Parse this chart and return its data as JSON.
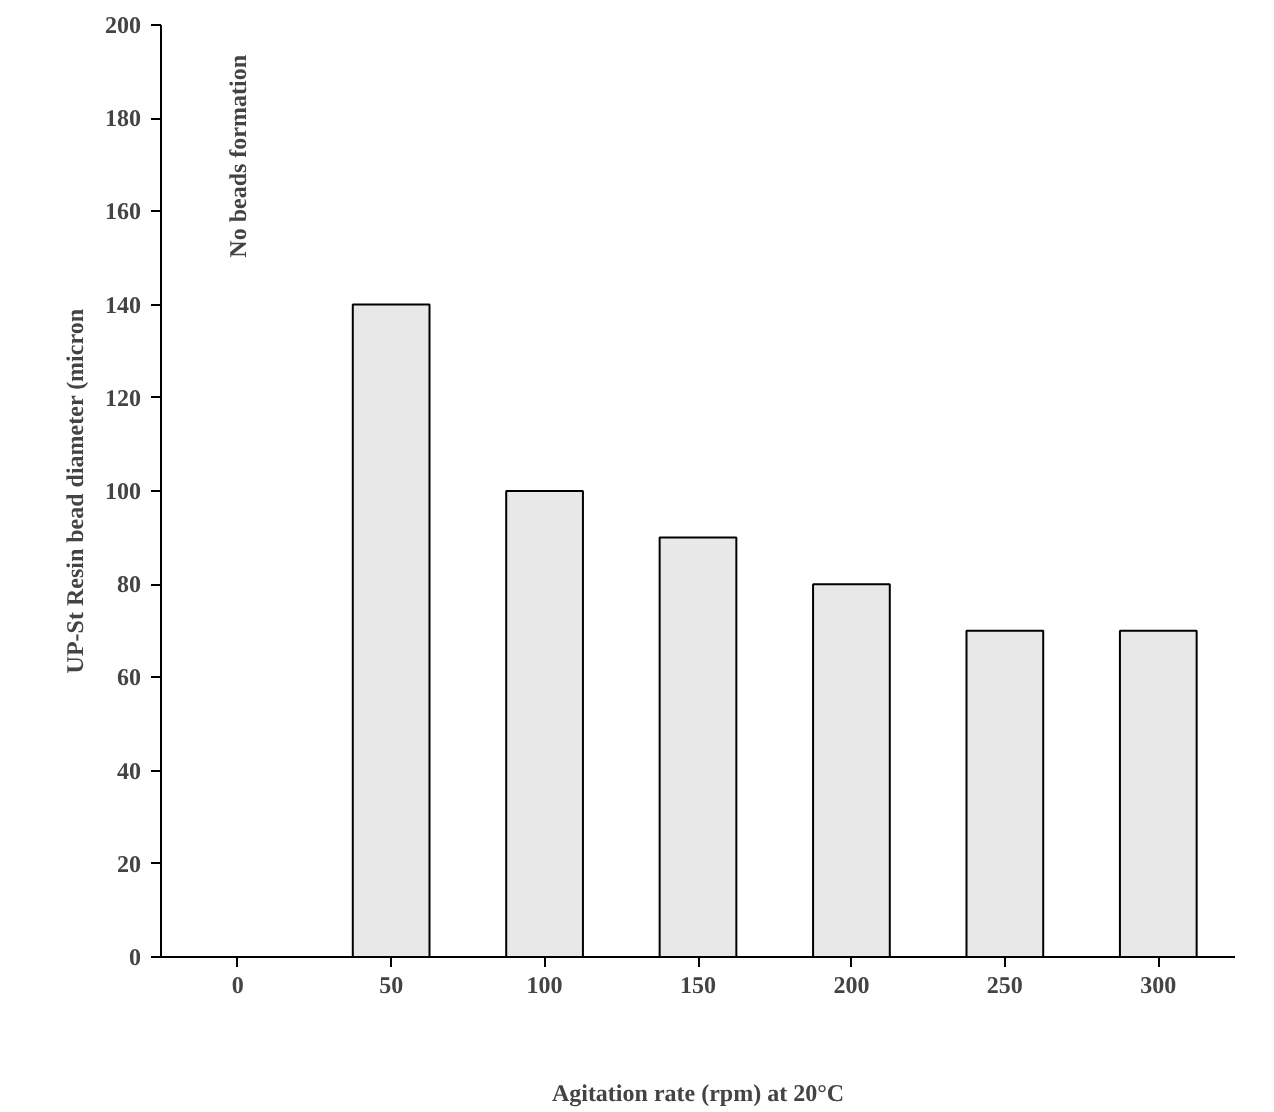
{
  "chart_data": {
    "type": "bar",
    "categories": [
      "0",
      "50",
      "100",
      "150",
      "200",
      "250",
      "300"
    ],
    "values": [
      null,
      140,
      100,
      90,
      80,
      70,
      70
    ],
    "color": "#e8e8e8",
    "xlabel": "Agitation rate (rpm) at 20°C",
    "ylabel": "UP-St Resin bead diameter (micron",
    "ylim": [
      0,
      200
    ],
    "yticks": [
      0,
      20,
      40,
      60,
      80,
      100,
      120,
      140,
      160,
      180,
      200
    ],
    "grid": false,
    "annotations": [
      "No beads formation"
    ]
  }
}
